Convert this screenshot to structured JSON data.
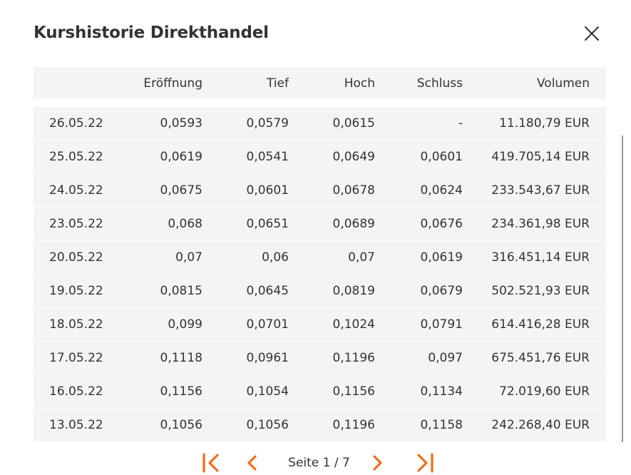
{
  "dialog": {
    "title": "Kurshistorie Direkthandel",
    "accent_color": "#ff6200"
  },
  "table": {
    "headers": [
      "",
      "Eröffnung",
      "Tief",
      "Hoch",
      "Schluss",
      "Volumen"
    ],
    "rows": [
      [
        "26.05.22",
        "0,0593",
        "0,0579",
        "0,0615",
        "-",
        "11.180,79 EUR"
      ],
      [
        "25.05.22",
        "0,0619",
        "0,0541",
        "0,0649",
        "0,0601",
        "419.705,14 EUR"
      ],
      [
        "24.05.22",
        "0,0675",
        "0,0601",
        "0,0678",
        "0,0624",
        "233.543,67 EUR"
      ],
      [
        "23.05.22",
        "0,068",
        "0,0651",
        "0,0689",
        "0,0676",
        "234.361,98 EUR"
      ],
      [
        "20.05.22",
        "0,07",
        "0,06",
        "0,07",
        "0,0619",
        "316.451,14 EUR"
      ],
      [
        "19.05.22",
        "0,0815",
        "0,0645",
        "0,0819",
        "0,0679",
        "502.521,93 EUR"
      ],
      [
        "18.05.22",
        "0,099",
        "0,0701",
        "0,1024",
        "0,0791",
        "614.416,28 EUR"
      ],
      [
        "17.05.22",
        "0,1118",
        "0,0961",
        "0,1196",
        "0,097",
        "675.451,76 EUR"
      ],
      [
        "16.05.22",
        "0,1156",
        "0,1054",
        "0,1156",
        "0,1134",
        "72.019,60 EUR"
      ],
      [
        "13.05.22",
        "0,1056",
        "0,1056",
        "0,1196",
        "0,1158",
        "242.268,40 EUR"
      ]
    ]
  },
  "pagination": {
    "label": "Seite 1 / 7",
    "icons": [
      "first-page-icon",
      "previous-page-icon",
      "next-page-icon",
      "last-page-icon"
    ]
  }
}
